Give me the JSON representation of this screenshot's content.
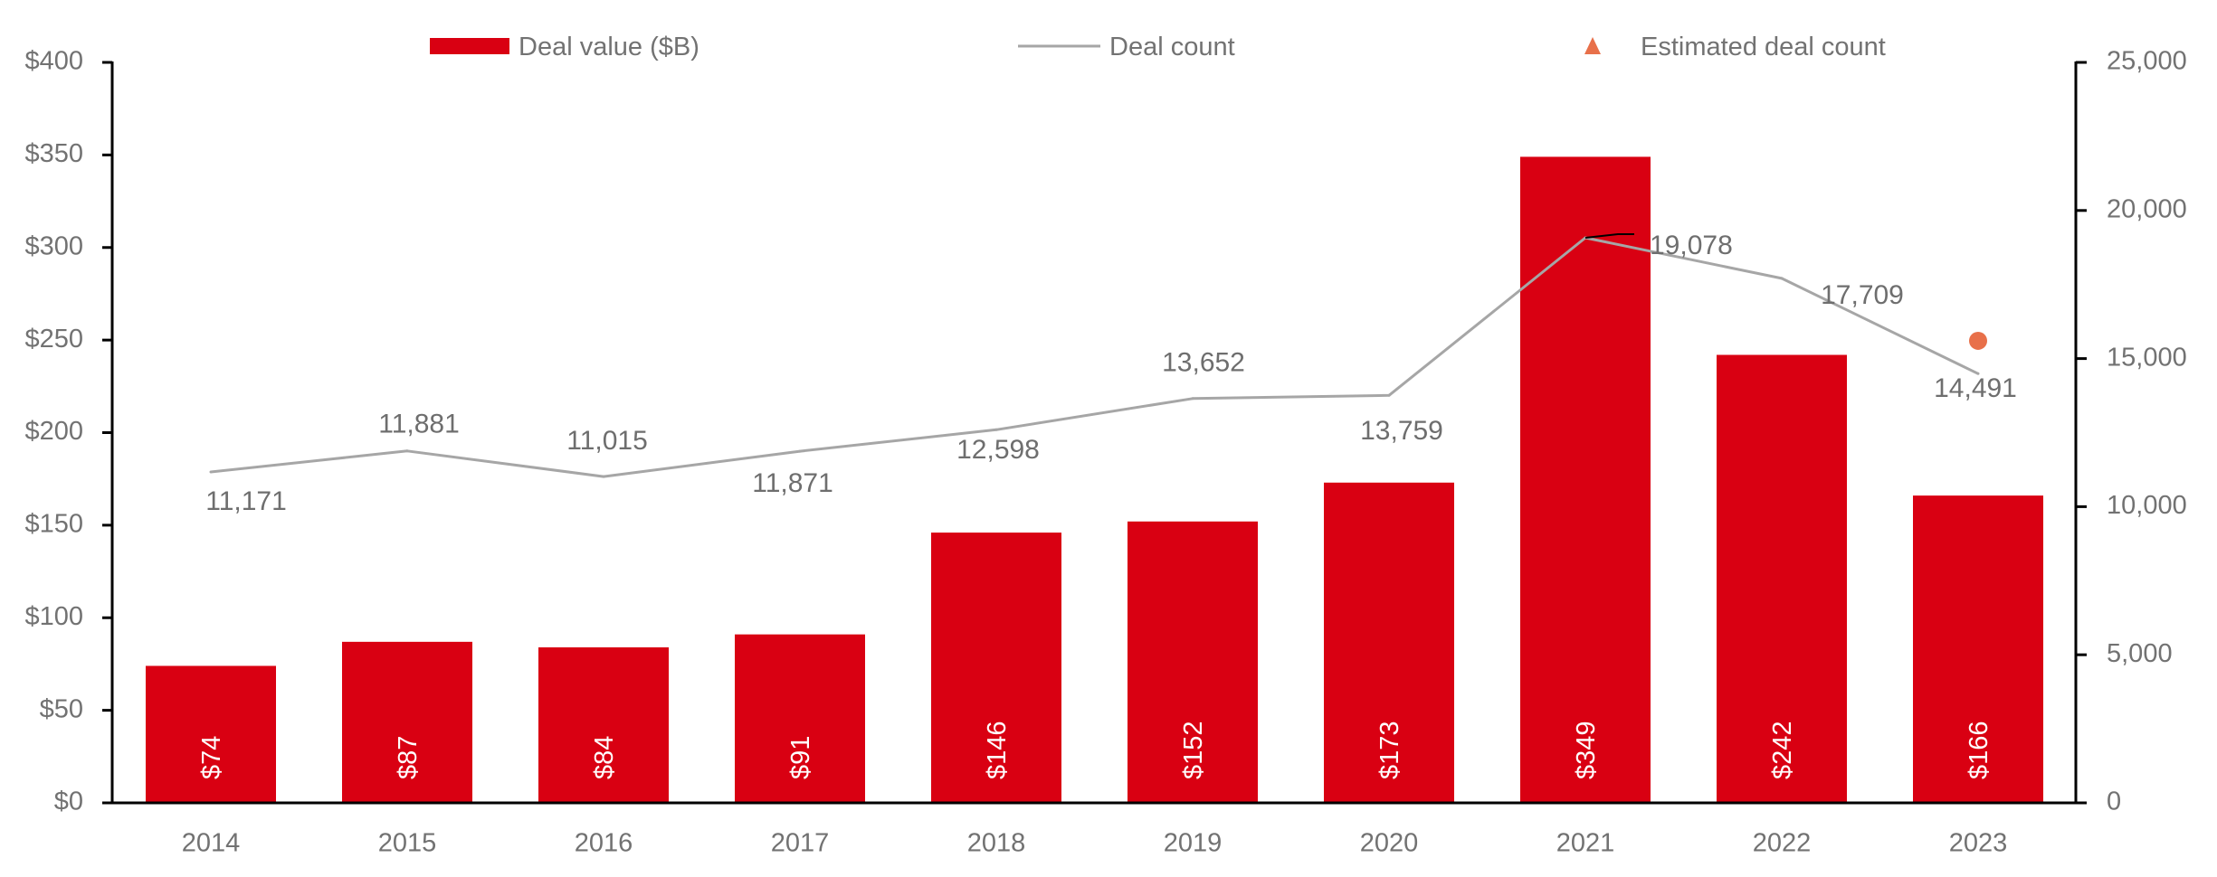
{
  "chart_data": {
    "type": "bar",
    "title": "",
    "xlabel": "",
    "ylabel": "",
    "y2label": "",
    "categories": [
      "2014",
      "2015",
      "2016",
      "2017",
      "2018",
      "2019",
      "2020",
      "2021",
      "2022",
      "2023"
    ],
    "series": [
      {
        "name": "Deal value ($B)",
        "type": "bar",
        "axis": "left",
        "color": "#D90012",
        "values": [
          74,
          87,
          84,
          91,
          146,
          152,
          173,
          349,
          242,
          166
        ],
        "labels": [
          "$74",
          "$87",
          "$84",
          "$91",
          "$146",
          "$152",
          "$173",
          "$349",
          "$242",
          "$166"
        ]
      },
      {
        "name": "Deal count",
        "type": "line",
        "axis": "right",
        "color": "#A6A6A6",
        "values": [
          11171,
          11881,
          11015,
          11871,
          12598,
          13652,
          13759,
          19078,
          17709,
          14491
        ],
        "labels": [
          "11,171",
          "11,881",
          "11,015",
          "11,871",
          "12,598",
          "13,652",
          "13,759",
          "19,078",
          "17,709",
          "14,491"
        ]
      },
      {
        "name": "Estimated deal count",
        "type": "scatter",
        "axis": "right",
        "color": "#E8704A",
        "values": [
          null,
          null,
          null,
          null,
          null,
          null,
          null,
          null,
          null,
          15600
        ]
      }
    ],
    "ylim": [
      0,
      400
    ],
    "y2lim": [
      0,
      25000
    ],
    "yticks": [
      0,
      50,
      100,
      150,
      200,
      250,
      300,
      350,
      400
    ],
    "ytick_labels": [
      "$0",
      "$50",
      "$100",
      "$150",
      "$200",
      "$250",
      "$300",
      "$350",
      "$400"
    ],
    "y2ticks": [
      0,
      5000,
      10000,
      15000,
      20000,
      25000
    ],
    "y2tick_labels": [
      "0",
      "5,000",
      "10,000",
      "15,000",
      "20,000",
      "25,000"
    ],
    "grid": false,
    "legend": {
      "placement": "top",
      "entries": [
        {
          "label": "Deal value ($B)",
          "marker": "bar",
          "color": "#D90012"
        },
        {
          "label": "Deal count",
          "marker": "line",
          "color": "#A6A6A6"
        },
        {
          "label": "Estimated deal count",
          "marker": "triangle",
          "color": "#E8704A"
        }
      ]
    }
  }
}
